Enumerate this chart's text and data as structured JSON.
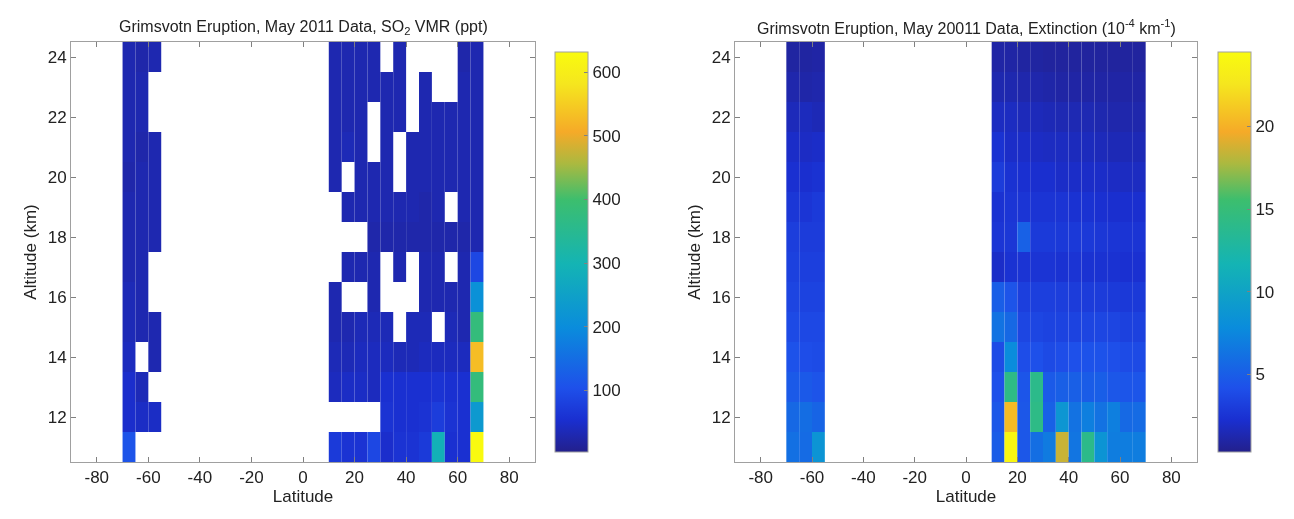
{
  "chart_data": [
    {
      "type": "heatmap",
      "title": "Grimsvotn Eruption, May 2011 Data, SO$_{2}$ VMR (ppt)",
      "xlabel": "Latitude",
      "ylabel": "Altitude (km)",
      "x": [
        -67.5,
        -62.5,
        -57.5,
        -52.5,
        -47.5,
        -42.5,
        -37.5,
        -32.5,
        -27.5,
        -22.5,
        -17.5,
        -12.5,
        -7.5,
        -2.5,
        2.5,
        7.5,
        12.5,
        17.5,
        22.5,
        27.5,
        32.5,
        37.5,
        42.5,
        47.5,
        52.5,
        57.5,
        62.5,
        67.5
      ],
      "y": [
        24,
        23,
        22,
        21,
        20,
        19,
        18,
        17,
        16,
        15,
        14,
        13,
        12,
        11
      ],
      "cells": [
        [
          30,
          25,
          30,
          null,
          null,
          null,
          null,
          null,
          null,
          null,
          null,
          null,
          null,
          null,
          null,
          null,
          30,
          30,
          30,
          30,
          null,
          30,
          null,
          null,
          null,
          null,
          25,
          30
        ],
        [
          30,
          30,
          null,
          null,
          null,
          null,
          null,
          null,
          null,
          null,
          null,
          null,
          null,
          null,
          null,
          null,
          30,
          30,
          30,
          30,
          30,
          30,
          null,
          30,
          null,
          null,
          30,
          30
        ],
        [
          30,
          30,
          null,
          null,
          null,
          null,
          null,
          null,
          null,
          null,
          null,
          null,
          null,
          null,
          null,
          null,
          30,
          30,
          30,
          null,
          30,
          30,
          null,
          30,
          30,
          30,
          30,
          30
        ],
        [
          30,
          25,
          30,
          null,
          null,
          null,
          null,
          null,
          null,
          null,
          null,
          null,
          null,
          null,
          null,
          null,
          30,
          35,
          30,
          null,
          30,
          null,
          30,
          30,
          30,
          30,
          30,
          30
        ],
        [
          25,
          30,
          30,
          null,
          null,
          null,
          null,
          null,
          null,
          null,
          null,
          null,
          null,
          null,
          null,
          null,
          30,
          null,
          30,
          30,
          30,
          null,
          30,
          30,
          30,
          30,
          30,
          30
        ],
        [
          30,
          30,
          30,
          null,
          null,
          null,
          null,
          null,
          null,
          null,
          null,
          null,
          null,
          null,
          null,
          null,
          null,
          30,
          30,
          30,
          30,
          30,
          30,
          25,
          30,
          null,
          30,
          30
        ],
        [
          30,
          30,
          30,
          null,
          null,
          null,
          null,
          null,
          null,
          null,
          null,
          null,
          null,
          null,
          null,
          null,
          null,
          null,
          null,
          25,
          25,
          25,
          25,
          25,
          25,
          25,
          25,
          30
        ],
        [
          30,
          30,
          null,
          null,
          null,
          null,
          null,
          null,
          null,
          null,
          null,
          null,
          null,
          null,
          null,
          null,
          null,
          30,
          30,
          30,
          null,
          30,
          null,
          30,
          30,
          null,
          30,
          90
        ],
        [
          35,
          30,
          null,
          null,
          null,
          null,
          null,
          null,
          null,
          null,
          null,
          null,
          null,
          null,
          null,
          null,
          30,
          null,
          null,
          30,
          null,
          null,
          null,
          30,
          30,
          30,
          30,
          210
        ],
        [
          35,
          30,
          30,
          null,
          null,
          null,
          null,
          null,
          null,
          null,
          null,
          null,
          null,
          null,
          null,
          null,
          30,
          30,
          35,
          35,
          35,
          null,
          35,
          35,
          null,
          35,
          30,
          380
        ],
        [
          40,
          null,
          30,
          null,
          null,
          null,
          null,
          null,
          null,
          null,
          null,
          null,
          null,
          null,
          null,
          null,
          35,
          35,
          40,
          40,
          40,
          35,
          35,
          40,
          40,
          40,
          40,
          530
        ],
        [
          50,
          35,
          null,
          null,
          null,
          null,
          null,
          null,
          null,
          null,
          null,
          null,
          null,
          null,
          null,
          null,
          40,
          45,
          45,
          40,
          55,
          55,
          55,
          55,
          60,
          55,
          55,
          380
        ],
        [
          50,
          45,
          45,
          null,
          null,
          null,
          null,
          null,
          null,
          null,
          null,
          null,
          null,
          null,
          null,
          null,
          null,
          null,
          null,
          null,
          60,
          55,
          55,
          60,
          75,
          60,
          55,
          230
        ],
        [
          110,
          null,
          null,
          null,
          null,
          null,
          null,
          null,
          null,
          null,
          null,
          null,
          null,
          null,
          null,
          null,
          70,
          60,
          60,
          90,
          50,
          60,
          60,
          70,
          290,
          55,
          55,
          630
        ]
      ],
      "xlim": [
        -90,
        90
      ],
      "xticks": [
        -80,
        -60,
        -40,
        -20,
        0,
        20,
        40,
        60,
        80
      ],
      "ylim": [
        10.5,
        24.5
      ],
      "yticks": [
        12,
        14,
        16,
        18,
        20,
        22,
        24
      ],
      "clim": [
        3,
        632
      ],
      "cticks": [
        100,
        200,
        300,
        400,
        500,
        600
      ]
    },
    {
      "type": "heatmap",
      "title": "Grimsvotn Eruption, May 20011 Data, Extinction (10$^{-4}$ km$^{-1}$)",
      "xlabel": "Latitude",
      "ylabel": "Altitude (km)",
      "x": [
        -67.5,
        -62.5,
        -57.5,
        -52.5,
        -47.5,
        -42.5,
        -37.5,
        -32.5,
        -27.5,
        -22.5,
        -17.5,
        -12.5,
        -7.5,
        -2.5,
        2.5,
        7.5,
        12.5,
        17.5,
        22.5,
        27.5,
        32.5,
        37.5,
        42.5,
        47.5,
        52.5,
        57.5,
        62.5,
        67.5
      ],
      "y": [
        24,
        23,
        22,
        21,
        20,
        19,
        18,
        17,
        16,
        15,
        14,
        13,
        12,
        11
      ],
      "cells": [
        [
          0.9,
          0.9,
          1.0,
          null,
          null,
          null,
          null,
          null,
          null,
          null,
          null,
          null,
          null,
          null,
          null,
          null,
          1.0,
          1.0,
          0.9,
          0.9,
          0.8,
          0.8,
          0.8,
          0.8,
          0.8,
          0.8,
          0.8,
          0.8
        ],
        [
          1.2,
          1.1,
          1.2,
          null,
          null,
          null,
          null,
          null,
          null,
          null,
          null,
          null,
          null,
          null,
          null,
          null,
          1.3,
          1.3,
          1.2,
          1.2,
          1.1,
          1.0,
          1.0,
          1.0,
          1.0,
          1.0,
          1.0,
          1.0
        ],
        [
          1.6,
          1.7,
          1.5,
          null,
          null,
          null,
          null,
          null,
          null,
          null,
          null,
          null,
          null,
          null,
          null,
          null,
          1.8,
          1.8,
          1.6,
          1.6,
          1.5,
          1.4,
          1.4,
          1.4,
          1.3,
          1.2,
          1.2,
          1.2
        ],
        [
          2.0,
          1.9,
          2.0,
          null,
          null,
          null,
          null,
          null,
          null,
          null,
          null,
          null,
          null,
          null,
          null,
          null,
          2.4,
          2.0,
          2.0,
          1.9,
          1.8,
          1.8,
          1.7,
          1.7,
          1.6,
          1.5,
          1.5,
          1.5
        ],
        [
          2.3,
          2.2,
          2.4,
          null,
          null,
          null,
          null,
          null,
          null,
          null,
          null,
          null,
          null,
          null,
          null,
          null,
          3.0,
          2.4,
          2.3,
          2.2,
          2.2,
          2.0,
          2.0,
          2.0,
          2.0,
          1.9,
          1.8,
          1.8
        ],
        [
          2.7,
          2.6,
          2.9,
          null,
          null,
          null,
          null,
          null,
          null,
          null,
          null,
          null,
          null,
          null,
          null,
          null,
          2.4,
          2.6,
          2.6,
          2.5,
          2.5,
          2.5,
          2.4,
          2.4,
          2.3,
          2.2,
          2.2,
          2.2
        ],
        [
          3.1,
          3.0,
          3.0,
          null,
          null,
          null,
          null,
          null,
          null,
          null,
          null,
          null,
          null,
          null,
          null,
          null,
          2.6,
          2.7,
          5.2,
          2.9,
          2.9,
          2.8,
          2.8,
          2.8,
          2.7,
          2.6,
          2.5,
          2.5
        ],
        [
          3.3,
          3.2,
          3.2,
          null,
          null,
          null,
          null,
          null,
          null,
          null,
          null,
          null,
          null,
          null,
          null,
          null,
          2.0,
          2.4,
          2.5,
          2.5,
          2.5,
          2.4,
          2.5,
          2.4,
          2.4,
          2.4,
          2.3,
          2.3
        ],
        [
          3.5,
          3.4,
          3.4,
          null,
          null,
          null,
          null,
          null,
          null,
          null,
          null,
          null,
          null,
          null,
          null,
          null,
          5.0,
          4.4,
          3.2,
          3.2,
          3.2,
          3.1,
          3.0,
          3.0,
          3.0,
          2.9,
          2.8,
          2.8
        ],
        [
          3.8,
          3.7,
          3.7,
          null,
          null,
          null,
          null,
          null,
          null,
          null,
          null,
          null,
          null,
          null,
          null,
          null,
          6.3,
          5.6,
          3.6,
          3.6,
          3.4,
          3.4,
          3.4,
          3.5,
          3.6,
          3.5,
          3.3,
          3.3
        ],
        [
          4.3,
          4.0,
          3.9,
          null,
          null,
          null,
          null,
          null,
          null,
          null,
          null,
          null,
          null,
          null,
          null,
          null,
          3.9,
          7.8,
          4.0,
          4.2,
          3.8,
          4.0,
          4.2,
          4.3,
          4.3,
          4.1,
          3.9,
          3.8
        ],
        [
          4.8,
          4.7,
          4.4,
          null,
          null,
          null,
          null,
          null,
          null,
          null,
          null,
          null,
          null,
          null,
          null,
          null,
          4.2,
          14.2,
          4.5,
          14.0,
          4.8,
          5.1,
          5.1,
          4.9,
          5.0,
          4.6,
          4.5,
          4.5
        ],
        [
          5.6,
          5.9,
          5.4,
          null,
          null,
          null,
          null,
          null,
          null,
          null,
          null,
          null,
          null,
          null,
          null,
          null,
          4.6,
          20.5,
          4.6,
          14.2,
          5.2,
          8.8,
          6.2,
          7.0,
          6.2,
          7.0,
          5.7,
          5.8
        ],
        [
          6.1,
          5.8,
          8.6,
          null,
          null,
          null,
          null,
          null,
          null,
          null,
          null,
          null,
          null,
          null,
          null,
          null,
          4.9,
          24.0,
          4.6,
          6.0,
          6.8,
          18.5,
          6.4,
          14.0,
          8.6,
          6.9,
          6.9,
          6.9
        ]
      ],
      "xlim": [
        -90,
        90
      ],
      "xticks": [
        -80,
        -60,
        -40,
        -20,
        0,
        20,
        40,
        60,
        80
      ],
      "ylim": [
        10.5,
        24.5
      ],
      "yticks": [
        12,
        14,
        16,
        18,
        20,
        22,
        24
      ],
      "clim": [
        0.3,
        24.5
      ],
      "cticks": [
        5,
        10,
        15,
        20
      ]
    }
  ]
}
